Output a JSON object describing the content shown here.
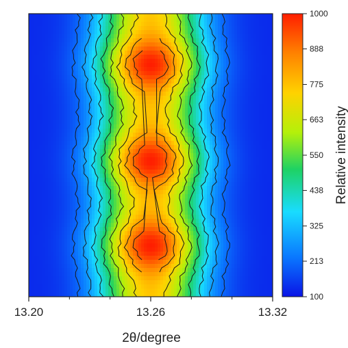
{
  "chart_data": {
    "type": "heatmap",
    "title": "",
    "xlabel": "2θ/degree",
    "ylabel": "",
    "xlim": [
      13.2,
      13.32
    ],
    "x_ticks": [
      "13.20",
      "13.26",
      "13.32"
    ],
    "peak_center_2theta": 13.26,
    "intensity_maxima_fraction_of_height": [
      0.18,
      0.48,
      0.82
    ],
    "colorbar": {
      "label": "Relative intensity",
      "range": [
        100,
        1000
      ],
      "ticks": [
        "1000",
        "888",
        "775",
        "663",
        "550",
        "438",
        "325",
        "213",
        "100"
      ],
      "colormap": [
        "#0a14e6",
        "#0a78ff",
        "#19dcff",
        "#1ed264",
        "#b4f00a",
        "#ffd200",
        "#ff8200",
        "#ff1e00"
      ]
    },
    "contour_lines": true
  }
}
